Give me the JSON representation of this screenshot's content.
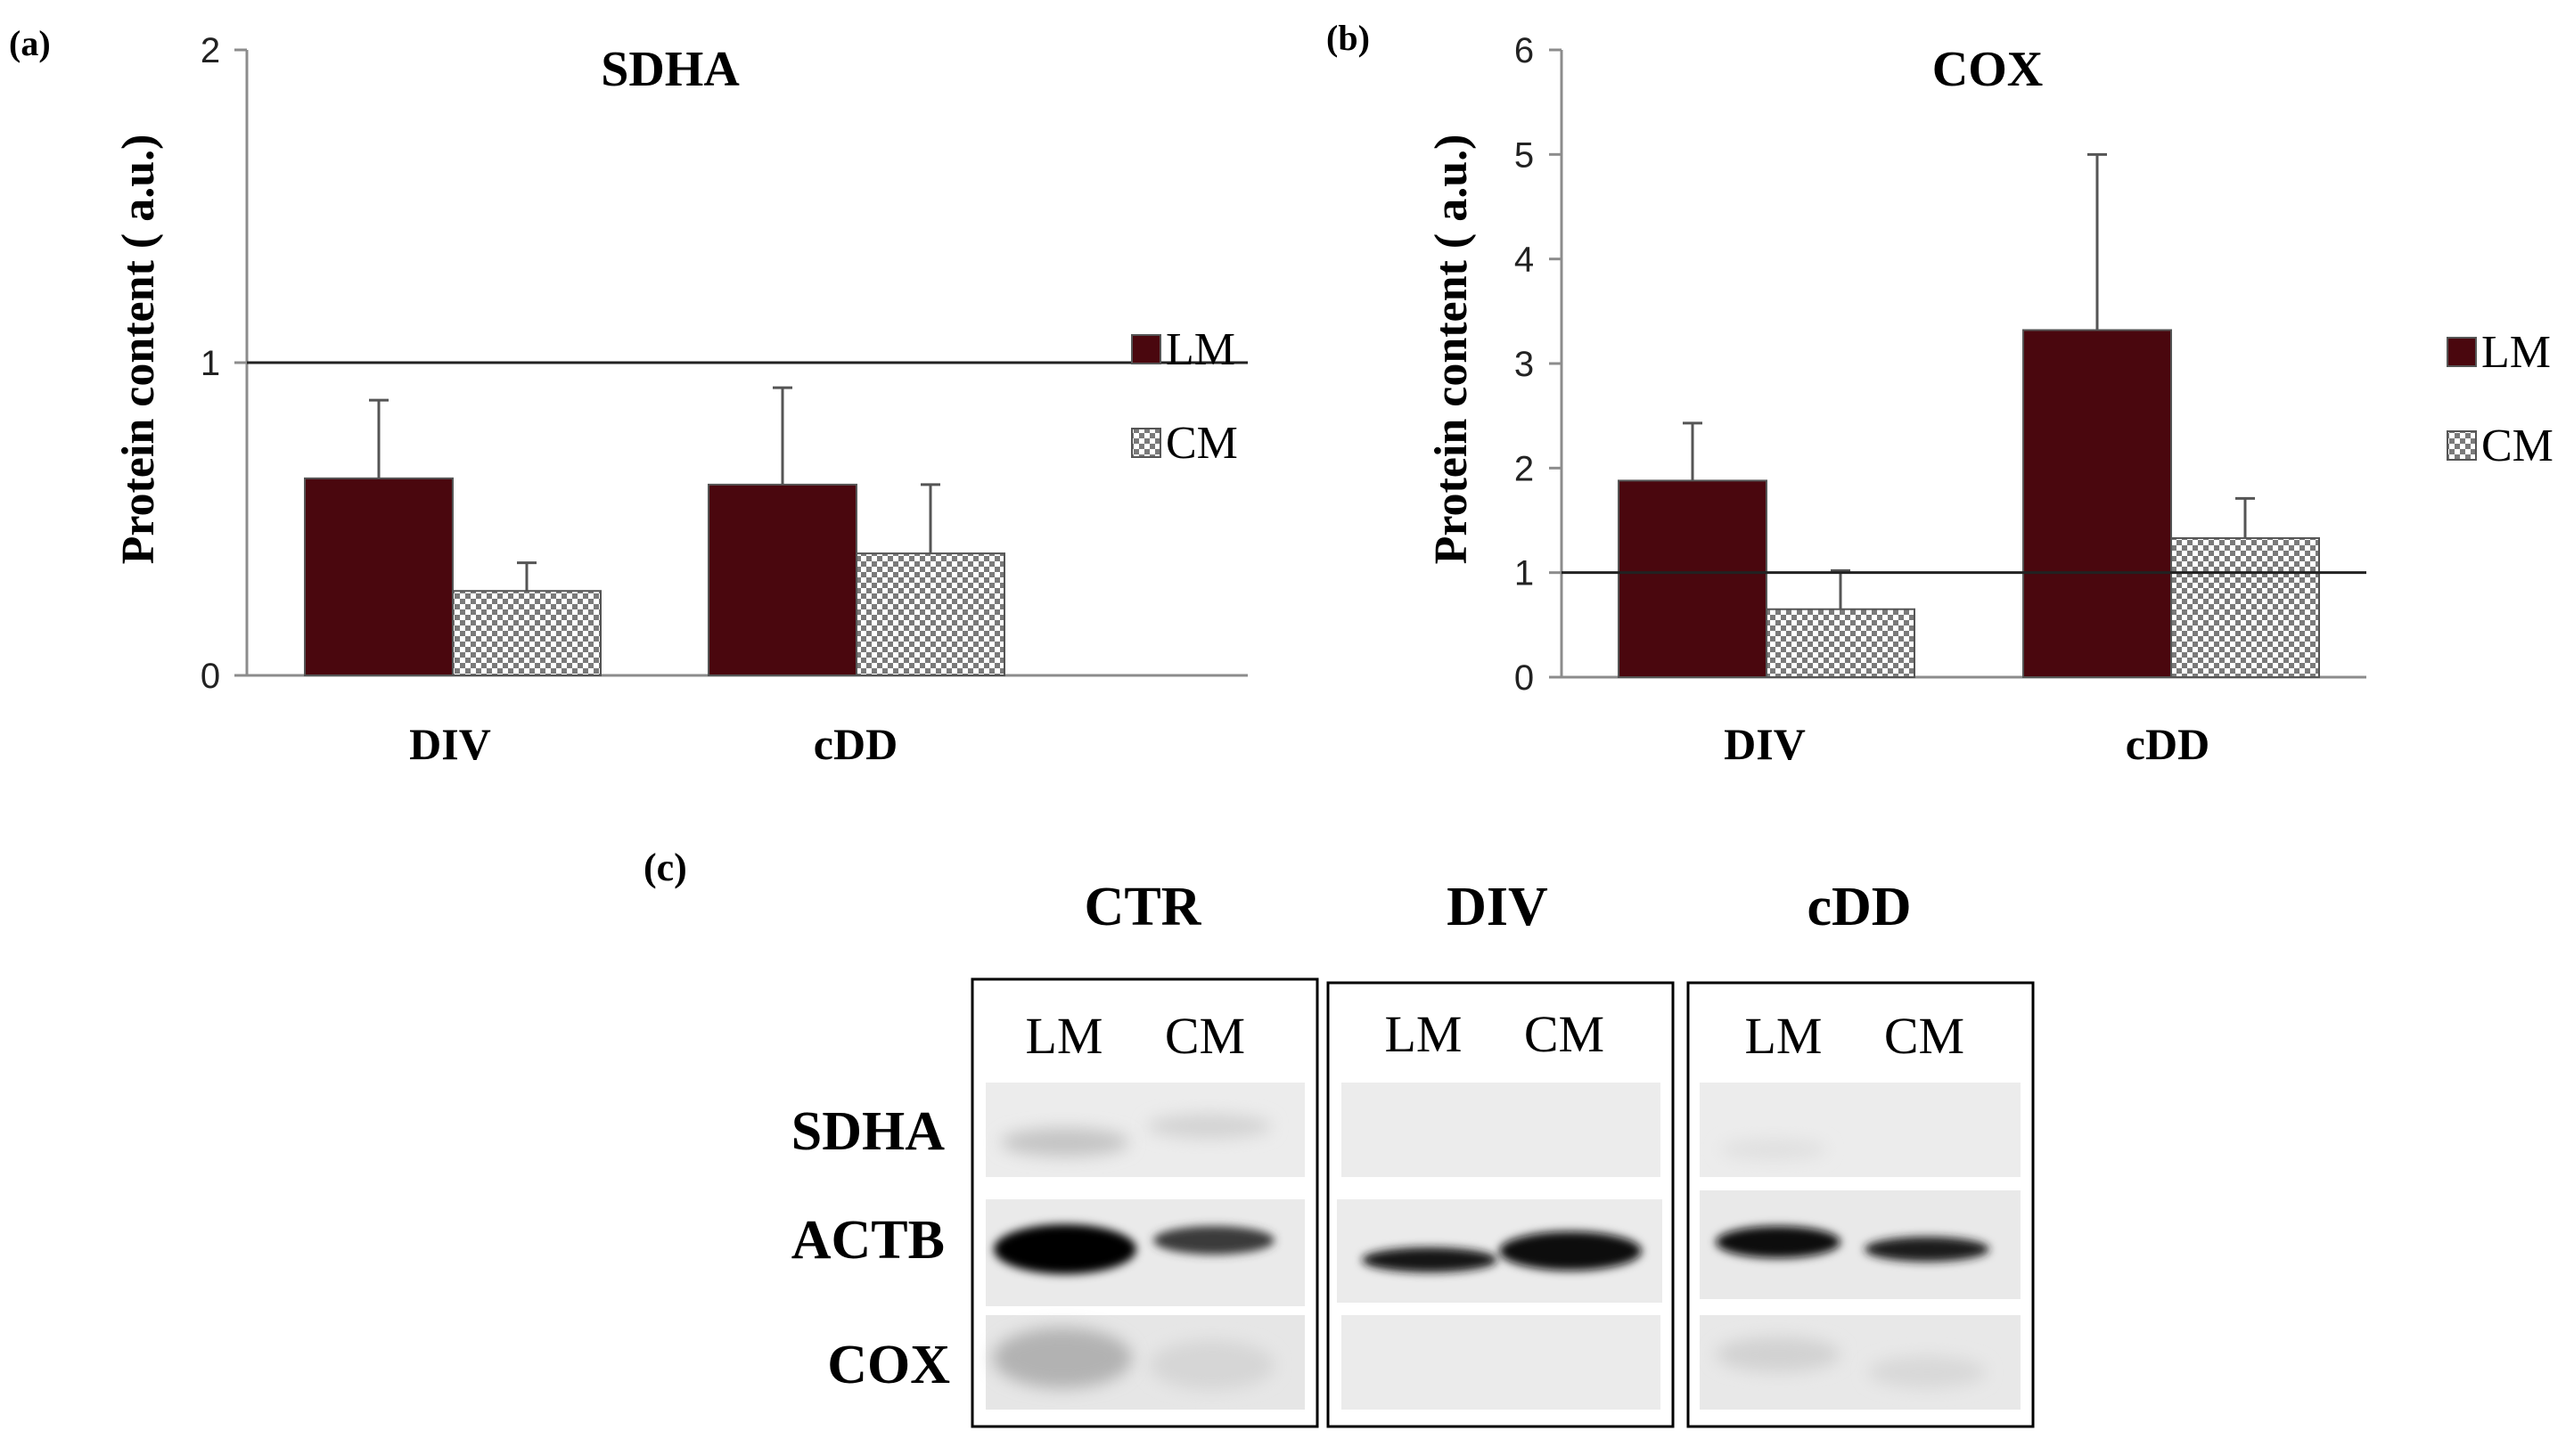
{
  "chart_data": [
    {
      "type": "bar",
      "panel_label": "(a)",
      "title": "SDHA",
      "categories": [
        "DIV",
        "cDD"
      ],
      "series": [
        {
          "name": "LM",
          "values": [
            0.63,
            0.61
          ],
          "errors": [
            0.25,
            0.31
          ]
        },
        {
          "name": "CM",
          "values": [
            0.27,
            0.39
          ],
          "errors": [
            0.09,
            0.22
          ]
        }
      ],
      "ylabel": "Protein  content  ( a.u.)",
      "xlabel": "",
      "ylim": [
        0,
        2
      ],
      "yticks": [
        "0",
        "1",
        "2"
      ],
      "reference_line": 1,
      "legend_position": "right"
    },
    {
      "type": "bar",
      "panel_label": "(b)",
      "title": "COX",
      "categories": [
        "DIV",
        "cDD"
      ],
      "series": [
        {
          "name": "LM",
          "values": [
            1.88,
            3.32
          ],
          "errors": [
            0.55,
            1.68
          ]
        },
        {
          "name": "CM",
          "values": [
            0.65,
            1.33
          ],
          "errors": [
            0.37,
            0.38
          ]
        }
      ],
      "ylabel": "Protein  content  ( a.u.)",
      "xlabel": "",
      "ylim": [
        0,
        6
      ],
      "yticks": [
        "0",
        "1",
        "2",
        "3",
        "4",
        "5",
        "6"
      ],
      "reference_line": 1,
      "legend_position": "right"
    }
  ],
  "colors": {
    "LM": "#4a070e",
    "CM_checker_dark": "#7a7a7a",
    "CM_checker_light": "#ffffff",
    "axis": "#8c8c8c",
    "text": "#000000"
  },
  "blot": {
    "panel_label": "(c)",
    "groups": [
      "CTR",
      "DIV",
      "cDD"
    ],
    "lanes": [
      "LM",
      "CM"
    ],
    "rows": [
      "SDHA",
      "ACTB",
      "COX"
    ]
  }
}
